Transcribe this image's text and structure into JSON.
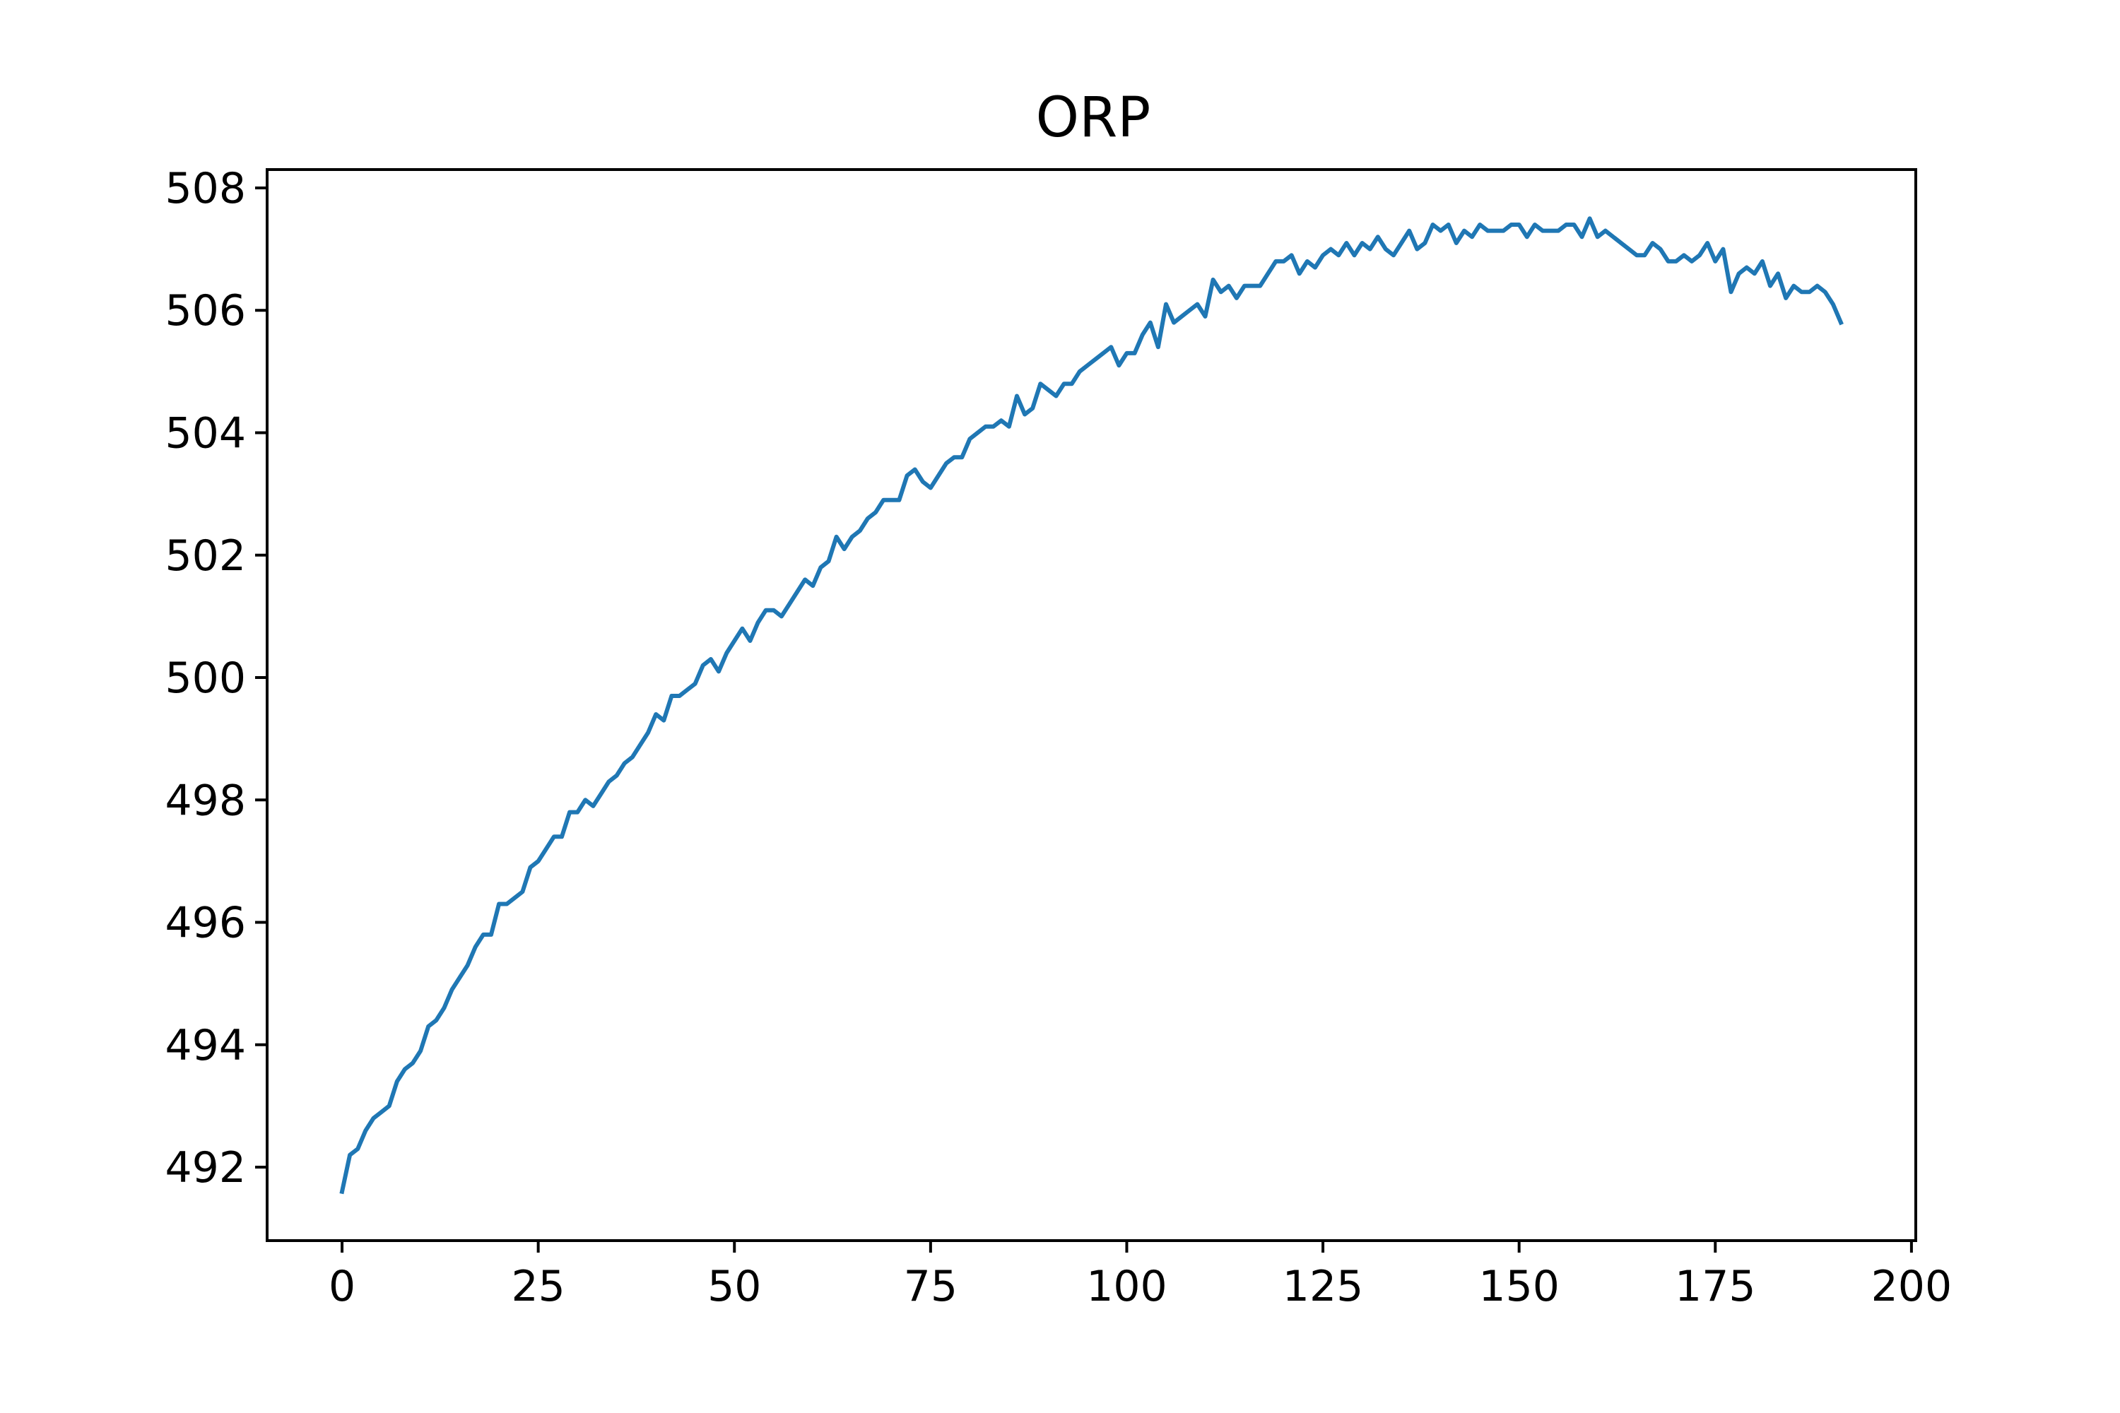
{
  "chart_data": {
    "type": "line",
    "title": "ORP",
    "xlabel": "",
    "ylabel": "",
    "xlim": [
      -9.55,
      200.55
    ],
    "ylim": [
      490.8,
      508.3
    ],
    "xticks": [
      0,
      25,
      50,
      75,
      100,
      125,
      150,
      175,
      200
    ],
    "yticks": [
      492,
      494,
      496,
      498,
      500,
      502,
      504,
      506,
      508
    ],
    "grid": false,
    "legend": "none",
    "colors": {
      "series": "#1f77b4"
    },
    "series": [
      {
        "values": [
          491.6,
          492.2,
          492.3,
          492.6,
          492.8,
          492.9,
          493.0,
          493.4,
          493.6,
          493.7,
          493.9,
          494.3,
          494.4,
          494.6,
          494.9,
          495.1,
          495.3,
          495.6,
          495.8,
          495.8,
          496.3,
          496.3,
          496.4,
          496.5,
          496.9,
          497.0,
          497.2,
          497.4,
          497.4,
          497.8,
          497.8,
          498.0,
          497.9,
          498.1,
          498.3,
          498.4,
          498.6,
          498.7,
          498.9,
          499.1,
          499.4,
          499.3,
          499.7,
          499.7,
          499.8,
          499.9,
          500.2,
          500.3,
          500.1,
          500.4,
          500.6,
          500.8,
          500.6,
          500.9,
          501.1,
          501.1,
          501.0,
          501.2,
          501.4,
          501.6,
          501.5,
          501.8,
          501.9,
          502.3,
          502.1,
          502.3,
          502.4,
          502.6,
          502.7,
          502.9,
          502.9,
          502.9,
          503.3,
          503.4,
          503.2,
          503.1,
          503.3,
          503.5,
          503.6,
          503.6,
          503.9,
          504.0,
          504.1,
          504.1,
          504.2,
          504.1,
          504.6,
          504.3,
          504.4,
          504.8,
          504.7,
          504.6,
          504.8,
          504.8,
          505.0,
          505.1,
          505.2,
          505.3,
          505.4,
          505.1,
          505.3,
          505.3,
          505.6,
          505.8,
          505.4,
          506.1,
          505.8,
          505.9,
          506.0,
          506.1,
          505.9,
          506.5,
          506.3,
          506.4,
          506.2,
          506.4,
          506.4,
          506.4,
          506.6,
          506.8,
          506.8,
          506.9,
          506.6,
          506.8,
          506.7,
          506.9,
          507.0,
          506.9,
          507.1,
          506.9,
          507.1,
          507.0,
          507.2,
          507.0,
          506.9,
          507.1,
          507.3,
          507.0,
          507.1,
          507.4,
          507.3,
          507.4,
          507.1,
          507.3,
          507.2,
          507.4,
          507.3,
          507.3,
          507.3,
          507.4,
          507.4,
          507.2,
          507.4,
          507.3,
          507.3,
          507.3,
          507.4,
          507.4,
          507.2,
          507.5,
          507.2,
          507.3,
          507.2,
          507.1,
          507.0,
          506.9,
          506.9,
          507.1,
          507.0,
          506.8,
          506.8,
          506.9,
          506.8,
          506.9,
          507.1,
          506.8,
          507.0,
          506.3,
          506.6,
          506.7,
          506.6,
          506.8,
          506.4,
          506.6,
          506.2,
          506.4,
          506.3,
          506.3,
          506.4,
          506.3,
          506.1,
          505.8
        ]
      }
    ]
  }
}
